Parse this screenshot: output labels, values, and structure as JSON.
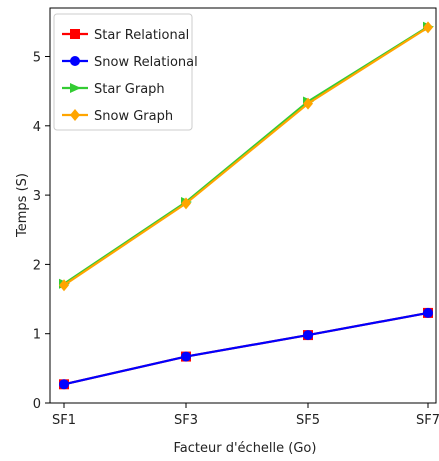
{
  "chart_data": {
    "type": "line",
    "categories": [
      "SF1",
      "SF3",
      "SF5",
      "SF7"
    ],
    "x": [
      1,
      3,
      5,
      7
    ],
    "xlabel": "Facteur d'échelle (Go)",
    "ylabel": "Temps (S)",
    "ylim": [
      0,
      5.5
    ],
    "yticks": [
      0,
      1,
      2,
      3,
      4,
      5
    ],
    "grid": false,
    "legend_position": "top-left",
    "series": [
      {
        "name": "Star Relational",
        "values": [
          0.27,
          0.67,
          0.98,
          1.3
        ],
        "color": "#ff0000",
        "marker": "square"
      },
      {
        "name": "Snow Relational",
        "values": [
          0.27,
          0.67,
          0.98,
          1.3
        ],
        "color": "#0000ff",
        "marker": "circle"
      },
      {
        "name": "Star Graph",
        "values": [
          1.72,
          2.9,
          4.35,
          5.43
        ],
        "color": "#33cc33",
        "marker": "triangle-right"
      },
      {
        "name": "Snow Graph",
        "values": [
          1.7,
          2.88,
          4.32,
          5.42
        ],
        "color": "#ffa500",
        "marker": "diamond"
      }
    ]
  }
}
